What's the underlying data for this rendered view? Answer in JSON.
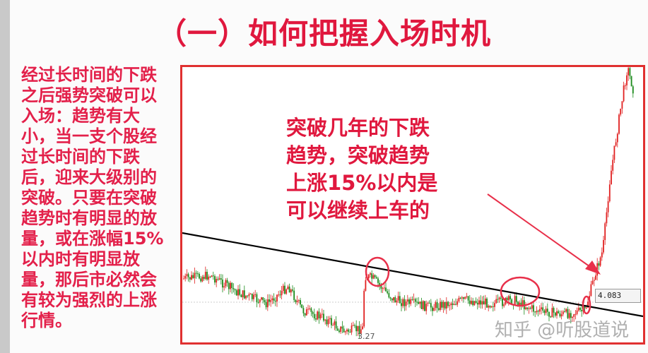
{
  "slide": {
    "title": "（一）如何把握入场时机",
    "left_text_lines": [
      "经过长时间的下跌",
      "之后强势突破可以",
      "入场：趋势有大",
      "小，当一支个股经",
      "过长时间的下跌",
      "后，迎来大级别的",
      "突破。只要在突破",
      "趋势时有明显的放",
      "量，或在涨幅15%",
      "以内时有明显放",
      "量，那后市必然会",
      "有较为强烈的上涨",
      "行情。"
    ],
    "annotation_lines": [
      "突破几年的下跌",
      "趋势，突破趋势",
      "上涨15%以内是",
      "可以继续上车的"
    ]
  },
  "chart": {
    "type": "candlestick",
    "price_label": "4.083",
    "low_label": "3.27",
    "watermark": "知乎 @听股道说",
    "colors": {
      "up": "#e02020",
      "down": "#1a8a1a",
      "trendline": "#000000",
      "highlight": "#e8304a",
      "text": "#e0183e"
    }
  }
}
